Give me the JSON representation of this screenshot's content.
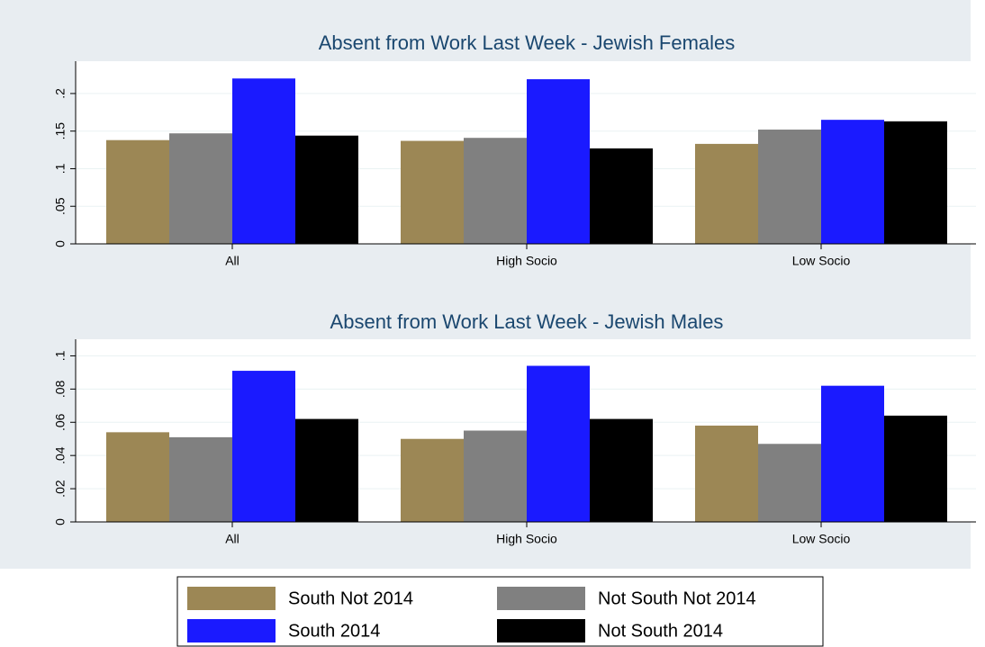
{
  "chart_data": [
    {
      "type": "bar",
      "title": "Absent from Work Last Week - Jewish Females",
      "categories": [
        "All",
        "High Socio",
        "Low Socio"
      ],
      "series": [
        {
          "name": "South Not 2014",
          "color": "#9c8755",
          "values": [
            0.138,
            0.137,
            0.133
          ]
        },
        {
          "name": "Not South Not 2014",
          "color": "#808080",
          "values": [
            0.147,
            0.141,
            0.152
          ]
        },
        {
          "name": "South 2014",
          "color": "#1a1aff",
          "values": [
            0.22,
            0.219,
            0.165
          ]
        },
        {
          "name": "Not South 2014",
          "color": "#000000",
          "values": [
            0.144,
            0.127,
            0.163
          ]
        }
      ],
      "ylim": [
        0,
        0.243
      ],
      "yticks": [
        0,
        {
          "value": 0.05,
          "label": ".05"
        },
        {
          "value": 0.1,
          "label": ".1"
        },
        {
          "value": 0.15,
          "label": ".15"
        },
        {
          "value": 0.2,
          "label": ".2"
        }
      ],
      "grid": true,
      "legend": "bottom"
    },
    {
      "type": "bar",
      "title": "Absent from Work Last Week - Jewish Males",
      "categories": [
        "All",
        "High Socio",
        "Low Socio"
      ],
      "series": [
        {
          "color": "#9c8755",
          "values": [
            0.054,
            0.05,
            0.058
          ]
        },
        {
          "color": "#808080",
          "values": [
            0.051,
            0.055,
            0.047
          ]
        },
        {
          "color": "#1a1aff",
          "values": [
            0.091,
            0.094,
            0.082
          ]
        },
        {
          "color": "#000000",
          "values": [
            0.062,
            0.062,
            0.064
          ]
        }
      ],
      "ylim": [
        0,
        0.11
      ],
      "yticks": [
        0,
        {
          "value": 0.02,
          "label": ".02"
        },
        {
          "value": 0.04,
          "label": ".04"
        },
        {
          "value": 0.06,
          "label": ".06"
        },
        {
          "value": 0.08,
          "label": ".08"
        },
        {
          "value": 0.1,
          "label": ".1"
        }
      ],
      "grid": true
    }
  ]
}
